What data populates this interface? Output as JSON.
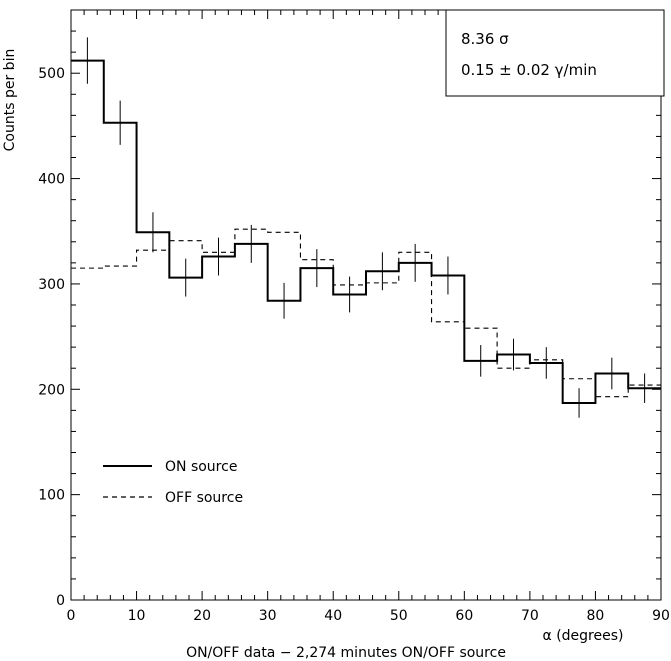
{
  "chart_data": {
    "type": "line",
    "subtype": "histogram-step",
    "xlabel": "α (degrees)",
    "ylabel": "Counts per bin",
    "caption": "ON/OFF data − 2,274 minutes ON/OFF source",
    "xlim": [
      0,
      90
    ],
    "ylim": [
      0,
      560
    ],
    "x_ticks": [
      0,
      10,
      20,
      30,
      40,
      50,
      60,
      70,
      80,
      90
    ],
    "y_ticks": [
      0,
      100,
      200,
      300,
      400,
      500
    ],
    "bin_edges": [
      0,
      5,
      10,
      15,
      20,
      25,
      30,
      35,
      40,
      45,
      50,
      55,
      60,
      65,
      70,
      75,
      80,
      85,
      90
    ],
    "series": [
      {
        "name": "ON source",
        "style": "solid",
        "values": [
          512,
          453,
          349,
          306,
          326,
          338,
          284,
          315,
          290,
          312,
          320,
          308,
          227,
          233,
          225,
          187,
          215,
          201
        ],
        "errors": [
          22,
          21,
          19,
          18,
          18,
          18,
          17,
          18,
          17,
          18,
          18,
          18,
          15,
          15,
          15,
          14,
          15,
          14
        ]
      },
      {
        "name": "OFF source",
        "style": "dashed",
        "values": [
          315,
          317,
          332,
          341,
          330,
          352,
          349,
          323,
          299,
          301,
          330,
          264,
          258,
          220,
          228,
          210,
          193,
          204
        ]
      }
    ],
    "annotation": {
      "significance": "8.36 σ",
      "rate": "0.15 ± 0.02 γ/min"
    },
    "legend_position": "lower-left",
    "grid": false
  }
}
